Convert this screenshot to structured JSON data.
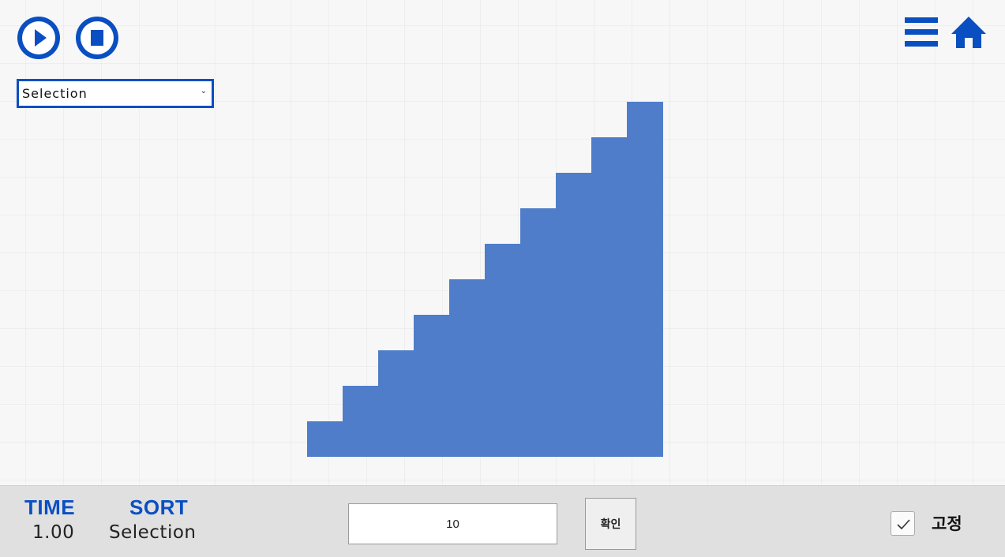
{
  "controls": {
    "play_icon": "play-circle",
    "stop_icon": "stop-circle",
    "menu_icon": "hamburger",
    "home_icon": "home",
    "accent": "#0a4fc2"
  },
  "sort_select": {
    "value": "Selection",
    "caret": "⌄"
  },
  "chart_data": {
    "type": "bar",
    "color": "#4f7dc9",
    "values": [
      1,
      2,
      3,
      4,
      5,
      6,
      7,
      8,
      9,
      10
    ],
    "ylim": [
      0,
      10
    ]
  },
  "bottom": {
    "time_label": "TIME",
    "time_value": "1.00",
    "sort_label": "SORT",
    "sort_value": "Selection",
    "count_value": "10",
    "confirm_label": "확인",
    "fix_label": "고정",
    "fix_checked": true
  }
}
